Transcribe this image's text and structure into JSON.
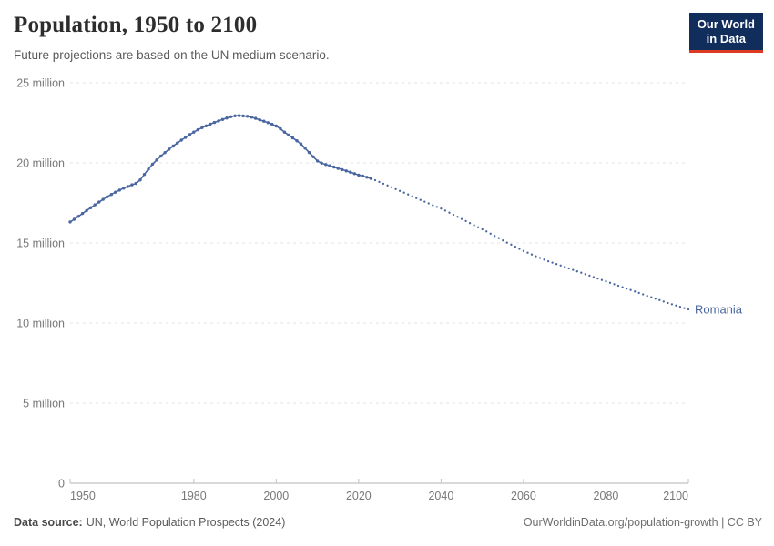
{
  "header": {
    "title": "Population, 1950 to 2100",
    "subtitle": "Future projections are based on the UN medium scenario.",
    "logo": {
      "line1": "Our World",
      "line2": "in Data",
      "bg_color": "#102D5C",
      "accent_color": "#DC3A23"
    }
  },
  "footer": {
    "source_label": "Data source:",
    "source_text": "UN, World Population Prospects (2024)",
    "credit_text": "OurWorldinData.org/population-growth | CC BY"
  },
  "chart_data": {
    "type": "line",
    "title": "Population, 1950 to 2100",
    "subtitle": "Future projections are based on the UN medium scenario.",
    "entity": "Romania",
    "end_label": "Romania",
    "unit": "million people",
    "xlabel": "",
    "ylabel": "",
    "xlim": [
      1950,
      2100
    ],
    "ylim": [
      0,
      25
    ],
    "x_ticks": [
      1950,
      1980,
      2000,
      2020,
      2040,
      2060,
      2080,
      2100
    ],
    "y_ticks": [
      {
        "value": 0,
        "label": "0"
      },
      {
        "value": 5,
        "label": "5 million"
      },
      {
        "value": 10,
        "label": "10 million"
      },
      {
        "value": 15,
        "label": "15 million"
      },
      {
        "value": 20,
        "label": "20 million"
      },
      {
        "value": 25,
        "label": "25 million"
      }
    ],
    "grid": "horizontal dashed",
    "legend_position": "line-end label",
    "line_color": "#4A66A0",
    "axis_color": "#b3b3b3",
    "grid_color": "#e3e3e3",
    "tick_label_color": "#787878",
    "series": [
      {
        "name": "Romania — historical estimates (solid line with yearly markers)",
        "style": "solid-markers",
        "start_year": 1950,
        "end_year": 2023,
        "values": [
          16.31,
          16.48,
          16.66,
          16.84,
          17.02,
          17.2,
          17.38,
          17.55,
          17.72,
          17.88,
          18.03,
          18.17,
          18.3,
          18.42,
          18.53,
          18.63,
          18.72,
          18.94,
          19.28,
          19.61,
          19.92,
          20.18,
          20.42,
          20.64,
          20.85,
          21.05,
          21.24,
          21.42,
          21.59,
          21.76,
          21.92,
          22.07,
          22.2,
          22.31,
          22.42,
          22.52,
          22.62,
          22.71,
          22.8,
          22.88,
          22.94,
          22.95,
          22.93,
          22.91,
          22.85,
          22.78,
          22.69,
          22.6,
          22.51,
          22.41,
          22.3,
          22.13,
          21.92,
          21.74,
          21.56,
          21.38,
          21.18,
          20.92,
          20.65,
          20.38,
          20.12,
          19.99,
          19.9,
          19.82,
          19.74,
          19.66,
          19.58,
          19.5,
          19.42,
          19.33,
          19.24,
          19.18,
          19.1,
          19.03
        ]
      },
      {
        "name": "Romania — UN medium scenario projection (dotted)",
        "style": "dotted",
        "start_year": 2024,
        "end_year": 2100,
        "values": [
          18.92,
          18.81,
          18.7,
          18.59,
          18.48,
          18.36,
          18.25,
          18.14,
          18.03,
          17.92,
          17.8,
          17.69,
          17.58,
          17.47,
          17.36,
          17.25,
          17.15,
          17.02,
          16.89,
          16.76,
          16.63,
          16.5,
          16.37,
          16.24,
          16.11,
          15.98,
          15.85,
          15.72,
          15.58,
          15.44,
          15.3,
          15.16,
          15.02,
          14.89,
          14.76,
          14.63,
          14.5,
          14.39,
          14.28,
          14.17,
          14.06,
          13.96,
          13.86,
          13.77,
          13.68,
          13.59,
          13.5,
          13.41,
          13.32,
          13.23,
          13.14,
          13.05,
          12.96,
          12.87,
          12.78,
          12.69,
          12.6,
          12.51,
          12.42,
          12.33,
          12.24,
          12.15,
          12.06,
          11.97,
          11.88,
          11.79,
          11.7,
          11.61,
          11.52,
          11.43,
          11.34,
          11.25,
          11.17,
          11.09,
          11.01,
          10.93,
          10.85
        ]
      }
    ]
  }
}
